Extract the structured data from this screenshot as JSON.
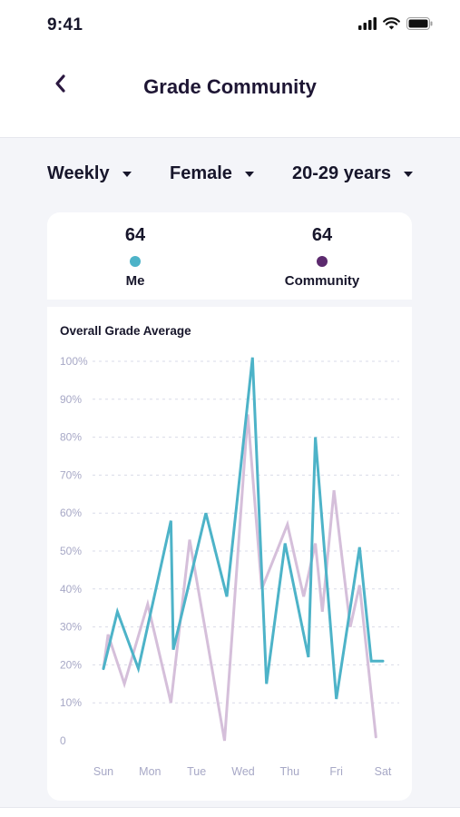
{
  "status_bar": {
    "time": "9:41",
    "icons": [
      "signal-icon",
      "wifi-icon",
      "battery-icon"
    ]
  },
  "header": {
    "title": "Grade Community",
    "back_icon": "chevron-left-icon"
  },
  "filters": [
    {
      "label": "Weekly"
    },
    {
      "label": "Female"
    },
    {
      "label": "20-29 years"
    }
  ],
  "summary": {
    "me": {
      "value": "64",
      "label": "Me",
      "color": "#4db3c8"
    },
    "community": {
      "value": "64",
      "label": "Community",
      "color": "#5c2a6e"
    }
  },
  "chart_data": {
    "type": "line",
    "title": "Overall Grade Average",
    "xlabel": "",
    "ylabel": "",
    "ylim": [
      0,
      100
    ],
    "y_ticks": [
      "0",
      "10%",
      "20%",
      "30%",
      "40%",
      "50%",
      "60%",
      "70%",
      "80%",
      "90%",
      "100%"
    ],
    "categories": [
      "Sun",
      "Mon",
      "Tue",
      "Wed",
      "Thu",
      "Fri",
      "Sat"
    ],
    "grid": true,
    "legend": "top",
    "series": [
      {
        "name": "Me",
        "color": "#4db3c8",
        "x": [
          0,
          0.3,
          0.75,
          1.45,
          1.5,
          2.2,
          2.65,
          3.2,
          3.5,
          3.9,
          4.4,
          4.55,
          5.0,
          5.5,
          5.75,
          6.0
        ],
        "values": [
          19,
          34,
          19,
          58,
          24,
          60,
          38,
          101,
          15,
          52,
          22,
          80,
          11,
          51,
          21,
          21
        ]
      },
      {
        "name": "Community",
        "color": "#d5bfda",
        "x": [
          0,
          0.1,
          0.45,
          0.95,
          1.45,
          1.85,
          2.6,
          3.1,
          3.4,
          3.95,
          4.3,
          4.55,
          4.7,
          4.95,
          5.3,
          5.5,
          5.85
        ],
        "values": [
          19,
          28,
          15,
          36,
          10,
          53,
          0,
          86,
          40,
          57,
          38,
          52,
          34,
          66,
          30,
          41,
          1
        ]
      }
    ]
  }
}
